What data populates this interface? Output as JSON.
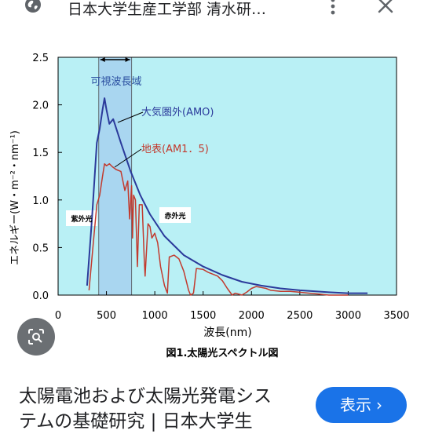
{
  "header": {
    "site_title": "日本大学生産工学部 清水研…",
    "icons": {
      "site": "globe-icon",
      "more": "more-vert-icon",
      "close": "close-icon"
    }
  },
  "figure": {
    "caption": "図1.太陽光スペクトル図",
    "region_label": "可視波長域",
    "uv_label": "紫外光",
    "ir_label": "赤外光",
    "colors": {
      "plot_bg": "#b9f0f5",
      "visible_band": "#a9d6f0",
      "amo_line": "#2b3a9b",
      "am15_line": "#c23a2e"
    }
  },
  "chart_data": {
    "type": "line",
    "xlabel": "波長(nm)",
    "ylabel": "エネルギー(W・m⁻²・nm⁻¹)",
    "xlim": [
      0,
      3500
    ],
    "ylim": [
      0,
      2.5
    ],
    "xticks": [
      "0",
      "500",
      "1000",
      "1500",
      "2000",
      "2500",
      "3000",
      "3500"
    ],
    "yticks": [
      "0.0",
      "0.5",
      "1.0",
      "1.5",
      "2.0",
      "2.5"
    ],
    "visible_range": [
      420,
      760
    ],
    "series": [
      {
        "name": "大気圏外(AMO)",
        "x": [
          300,
          350,
          400,
          430,
          460,
          480,
          500,
          530,
          570,
          650,
          750,
          850,
          950,
          1100,
          1300,
          1500,
          1700,
          1900,
          2100,
          2300,
          2500,
          2800,
          3000,
          3200
        ],
        "y": [
          0.1,
          0.8,
          1.6,
          1.75,
          1.95,
          2.07,
          1.95,
          1.8,
          1.85,
          1.6,
          1.3,
          1.05,
          0.85,
          0.62,
          0.42,
          0.3,
          0.21,
          0.14,
          0.1,
          0.07,
          0.05,
          0.03,
          0.02,
          0.02
        ]
      },
      {
        "name": "地表(AM1．5)",
        "x": [
          320,
          360,
          400,
          430,
          460,
          480,
          500,
          530,
          560,
          600,
          650,
          690,
          720,
          740,
          760,
          770,
          780,
          800,
          820,
          840,
          870,
          890,
          900,
          930,
          950,
          970,
          1000,
          1030,
          1060,
          1100,
          1130,
          1150,
          1200,
          1250,
          1300,
          1350,
          1370,
          1400,
          1430,
          1500,
          1550,
          1600,
          1650,
          1700,
          1750,
          1800,
          1830,
          1870,
          1900,
          1950,
          2000,
          2050,
          2100,
          2150,
          2200,
          2300,
          2400,
          2500,
          2600,
          2700,
          2800,
          3000
        ],
        "y": [
          0.05,
          0.5,
          0.95,
          1.05,
          1.25,
          1.38,
          1.36,
          1.38,
          1.35,
          1.32,
          1.3,
          1.1,
          1.2,
          0.8,
          1.15,
          0.6,
          1.05,
          1.0,
          0.3,
          0.95,
          0.95,
          0.4,
          0.2,
          0.75,
          0.72,
          0.6,
          0.65,
          0.55,
          0.3,
          0.1,
          0.02,
          0.4,
          0.42,
          0.38,
          0.25,
          0.05,
          0.0,
          0.02,
          0.28,
          0.27,
          0.24,
          0.22,
          0.2,
          0.15,
          0.07,
          0.0,
          0.02,
          0.01,
          0.0,
          0.03,
          0.07,
          0.09,
          0.08,
          0.07,
          0.05,
          0.04,
          0.04,
          0.03,
          0.02,
          0.01,
          0.0,
          0.0
        ]
      }
    ]
  },
  "lens": {
    "icon": "lens-search-icon"
  },
  "result": {
    "title_line1": "太陽電池および太陽光発電シス",
    "title_line2": "テムの基礎研究 | 日本大学生",
    "visit_label": "表示",
    "visit_chevron": "›"
  }
}
